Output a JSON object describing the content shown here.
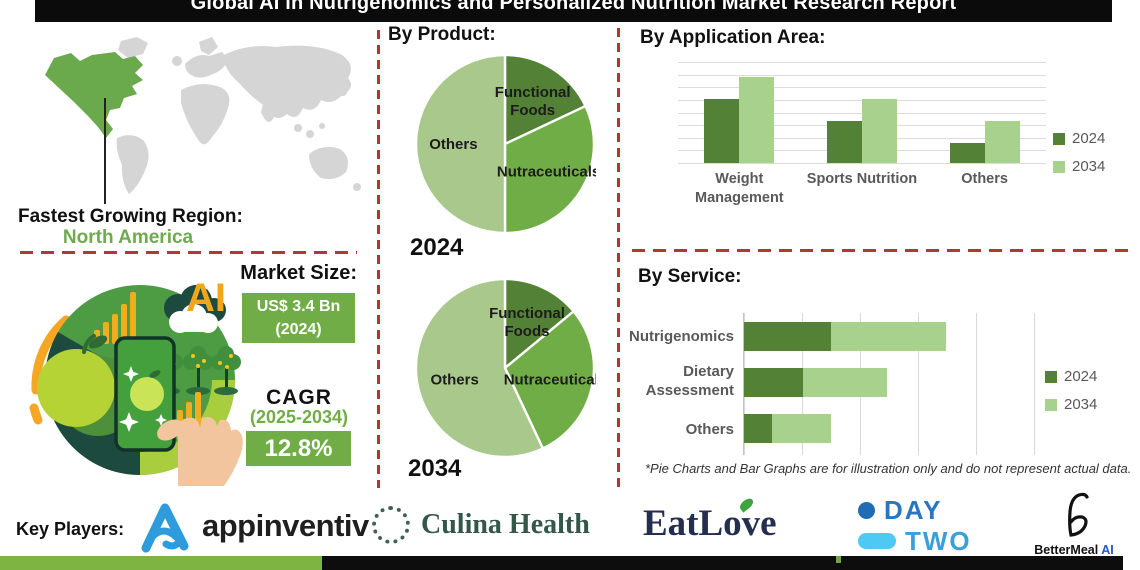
{
  "title": "Global AI in Nutrigenomics and Personalized Nutrition Market Research Report",
  "region_callout": {
    "label": "Fastest Growing Region:",
    "value": "North America"
  },
  "market_size": {
    "heading": "Market Size:",
    "value": "US$ 3.4 Bn",
    "value_period": "(2024)",
    "cagr_label": "CAGR",
    "cagr_period": "(2025-2034)",
    "cagr_value": "12.8%",
    "ai_badge": "AI"
  },
  "footnote": "*Pie Charts and Bar Graphs are for illustration only and do not represent actual data.",
  "key_players": {
    "label": "Key Players:",
    "brands": [
      {
        "name": "appinventiv",
        "text": "appinventiv"
      },
      {
        "name": "culina-health",
        "text": "Culina Health"
      },
      {
        "name": "eatlove",
        "text": "EatLove"
      },
      {
        "name": "day-two",
        "line1": "DAY",
        "line2": "TWO"
      },
      {
        "name": "bettermeal-ai",
        "text": "BetterMeal",
        "suffix": "AI"
      }
    ]
  },
  "colors": {
    "series_2024_dark_green": "#538135",
    "series_2034_light_green": "#a9d18e",
    "pie_mid_green": "#70ad47",
    "pie_light_green": "#a9c88c",
    "accent_red_dashed": "#a93a2e",
    "map_green": "#6aaa4c",
    "map_gray": "#d5d5d5",
    "market_box_green": "#70ad47",
    "bottom_bar_green": "#7db442",
    "title_bar_black": "#0b0b0b"
  },
  "chart_data": [
    {
      "id": "product-2024",
      "type": "pie",
      "group_title": "By Product:",
      "year_label": "2024",
      "units": "illustrative share (%)",
      "slices": [
        {
          "label": "Functional Foods",
          "value": 18,
          "color": "#538135"
        },
        {
          "label": "Nutraceuticals",
          "value": 32,
          "color": "#70ad47"
        },
        {
          "label": "Others",
          "value": 50,
          "color": "#a9c88c"
        }
      ]
    },
    {
      "id": "product-2034",
      "type": "pie",
      "group_title": "By Product:",
      "year_label": "2034",
      "units": "illustrative share (%)",
      "slices": [
        {
          "label": "Functional Foods",
          "value": 14,
          "color": "#538135"
        },
        {
          "label": "Nutraceuticals",
          "value": 29,
          "color": "#70ad47"
        },
        {
          "label": "Others",
          "value": 57,
          "color": "#a9c88c"
        }
      ]
    },
    {
      "id": "application-area",
      "type": "bar",
      "title": "By Application Area:",
      "categories": [
        "Weight Management",
        "Sports Nutrition",
        "Others"
      ],
      "series": [
        {
          "name": "2024",
          "color": "#538135",
          "values": [
            63,
            42,
            20
          ]
        },
        {
          "name": "2034",
          "color": "#a9d18e",
          "values": [
            85,
            63,
            42
          ]
        }
      ],
      "ylim": [
        0,
        100
      ],
      "grid": "horizontal",
      "legend_position": "right",
      "units": "illustrative index"
    },
    {
      "id": "service",
      "type": "stacked-hbar",
      "title": "By Service:",
      "categories": [
        "Nutrigenomics",
        "Dietary Assessment",
        "Others"
      ],
      "series": [
        {
          "name": "2024",
          "color": "#538135",
          "values": [
            25,
            17,
            8
          ]
        },
        {
          "name": "2034",
          "color": "#a9d18e",
          "values": [
            33,
            24,
            17
          ]
        }
      ],
      "xlim": [
        0,
        100
      ],
      "grid": "vertical",
      "legend_position": "right",
      "units": "illustrative index"
    }
  ]
}
